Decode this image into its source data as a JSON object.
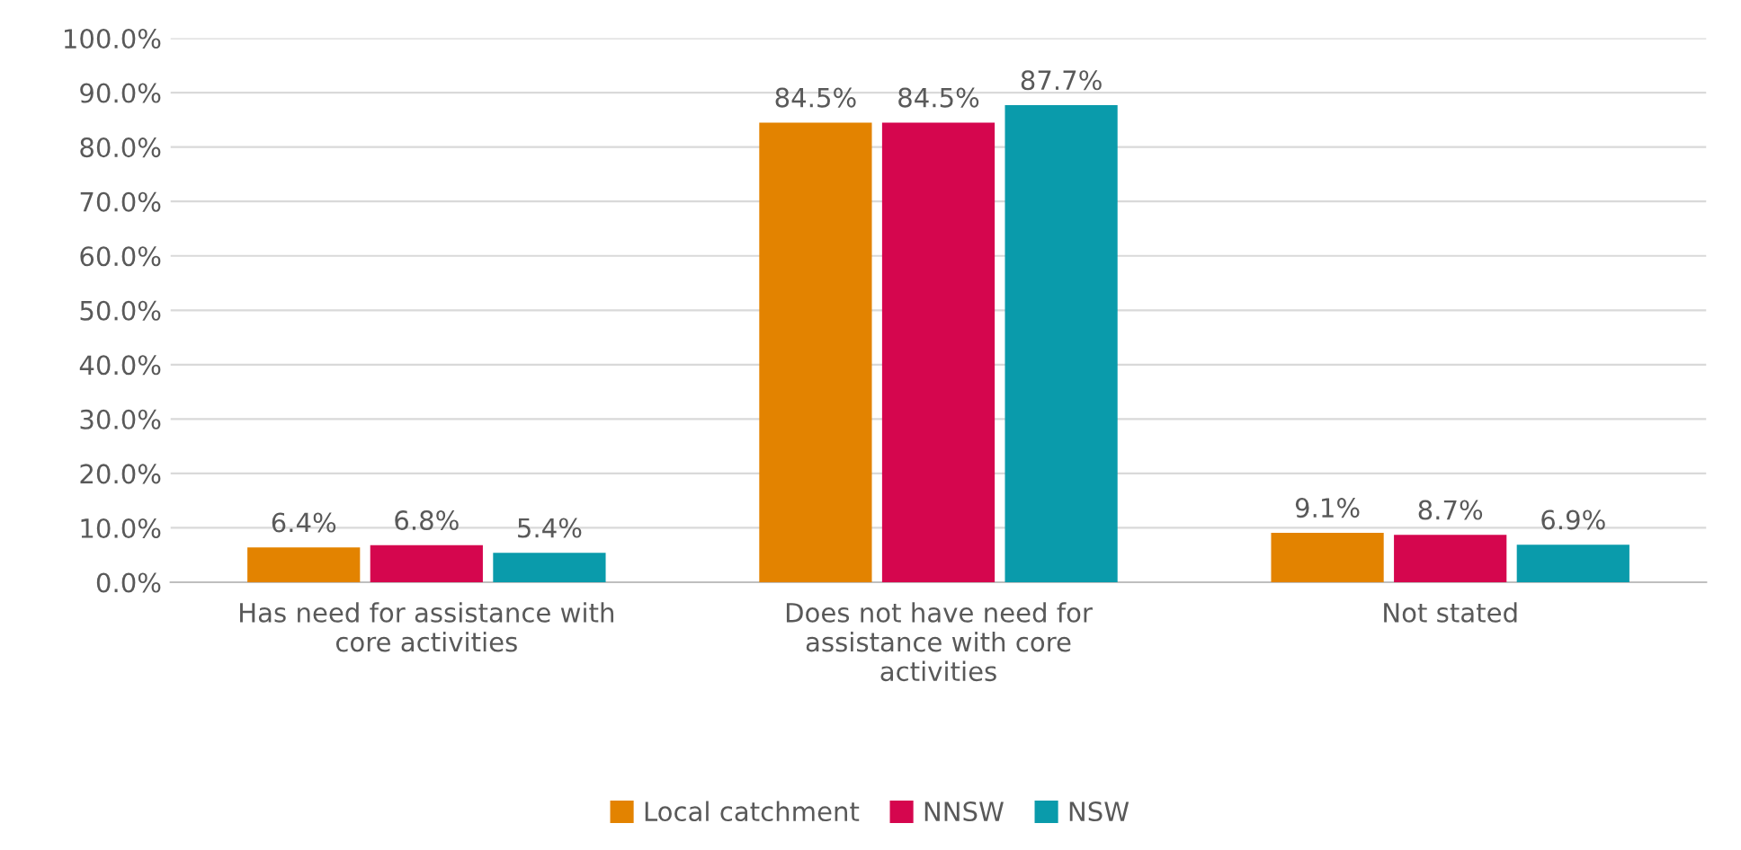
{
  "chart_data": {
    "type": "bar",
    "categories": [
      "Has need for assistance with\ncore activities",
      "Does not have need for\nassistance with core\nactivities",
      "Not stated"
    ],
    "series": [
      {
        "name": "Local catchment",
        "color": "#e38300",
        "values": [
          6.4,
          84.5,
          9.1
        ],
        "value_labels": [
          "6.4%",
          "84.5%",
          "9.1%"
        ]
      },
      {
        "name": "NNSW",
        "color": "#d5064e",
        "values": [
          6.8,
          84.5,
          8.7
        ],
        "value_labels": [
          "6.8%",
          "84.5%",
          "8.7%"
        ]
      },
      {
        "name": "NSW",
        "color": "#0a9bab",
        "values": [
          5.4,
          87.7,
          6.9
        ],
        "value_labels": [
          "5.4%",
          "87.7%",
          "6.9%"
        ]
      }
    ],
    "ylim": [
      0,
      100
    ],
    "yticks": [
      {
        "value": 0,
        "label": "0.0%"
      },
      {
        "value": 10,
        "label": "10.0%"
      },
      {
        "value": 20,
        "label": "20.0%"
      },
      {
        "value": 30,
        "label": "30.0%"
      },
      {
        "value": 40,
        "label": "40.0%"
      },
      {
        "value": 50,
        "label": "50.0%"
      },
      {
        "value": 60,
        "label": "60.0%"
      },
      {
        "value": 70,
        "label": "70.0%"
      },
      {
        "value": 80,
        "label": "80.0%"
      },
      {
        "value": 90,
        "label": "90.0%"
      },
      {
        "value": 100,
        "label": "100.0%"
      }
    ],
    "grid": "y",
    "legend": "bottom"
  }
}
